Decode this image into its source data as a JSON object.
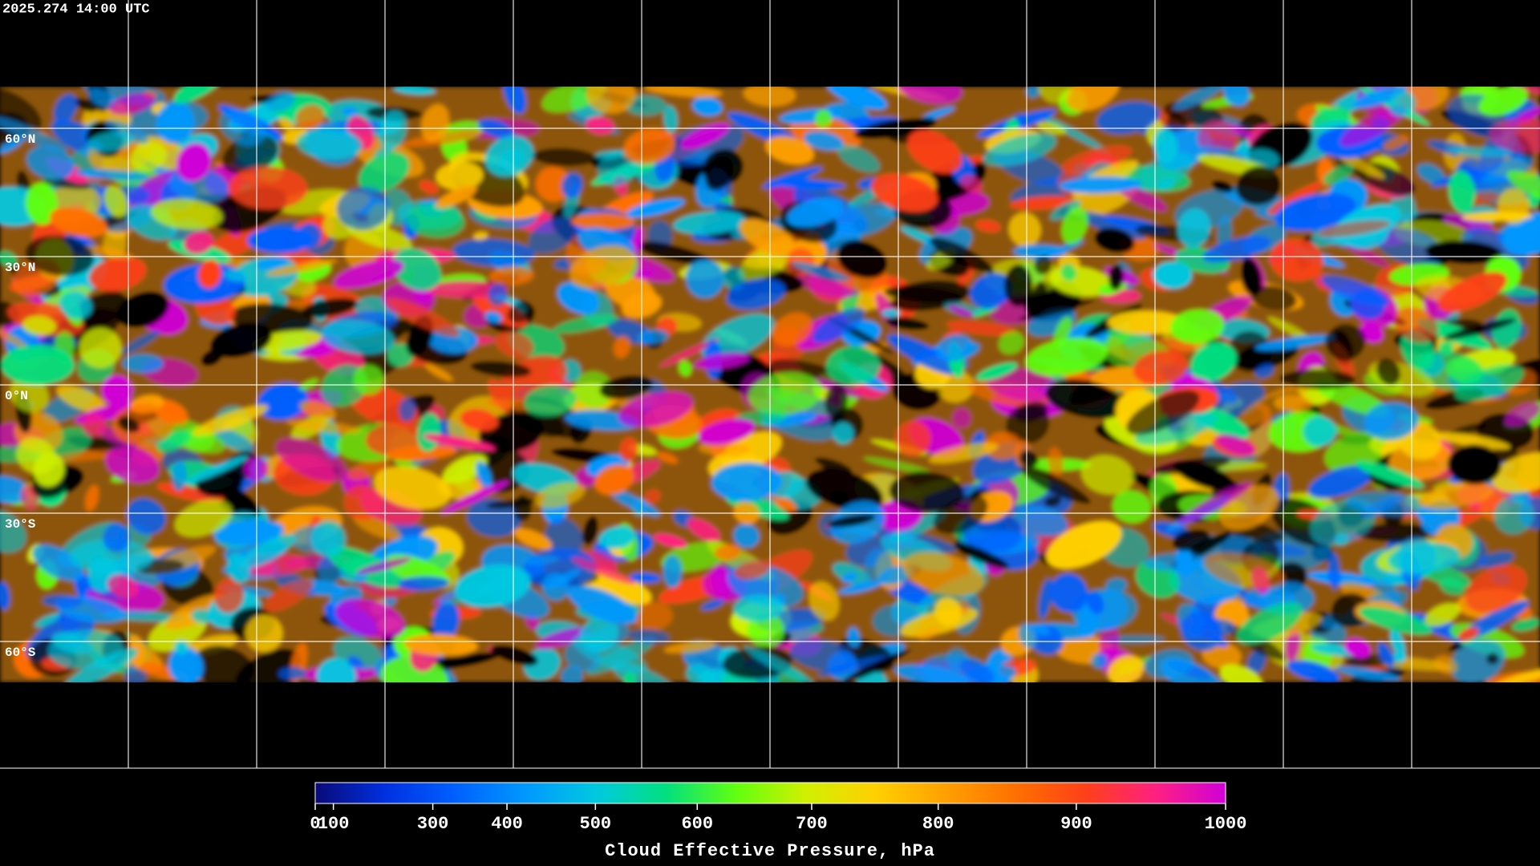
{
  "header": {
    "timestamp": "2025.274 14:00 UTC"
  },
  "map": {
    "lat_labels": [
      "60°N",
      "30°N",
      "0°N",
      "30°S",
      "60°S"
    ]
  },
  "colorbar": {
    "title": "Cloud Effective Pressure, hPa",
    "range": [
      0,
      1000
    ],
    "scale": "power",
    "exponent": 1.7,
    "ticks": [
      0,
      100,
      300,
      400,
      500,
      600,
      700,
      800,
      900,
      1000
    ],
    "colors": [
      "#0a0a78",
      "#0030e0",
      "#0060ff",
      "#0098ff",
      "#00c8e0",
      "#00e080",
      "#60ff10",
      "#d0f000",
      "#ffd000",
      "#ffa000",
      "#ff7000",
      "#ff4018",
      "#ff2080",
      "#d000d8"
    ]
  }
}
